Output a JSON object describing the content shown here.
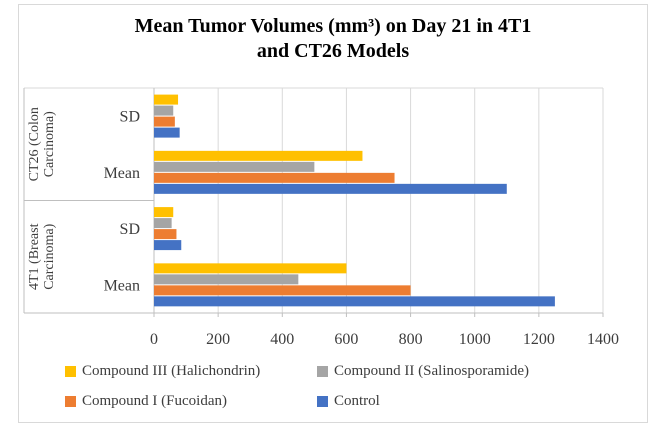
{
  "chart_data": {
    "type": "bar",
    "orientation": "horizontal",
    "title": "Mean Tumor Volumes (mm³) on Day 21 in 4T1 and CT26 Models",
    "title_lines": [
      "Mean Tumor Volumes (mm³) on Day 21 in 4T1",
      "and CT26 Models"
    ],
    "x_axis": {
      "min": 0,
      "max": 1400,
      "step": 200,
      "tick_labels": [
        "0",
        "200",
        "400",
        "600",
        "800",
        "1000",
        "1200",
        "1400"
      ]
    },
    "series": [
      {
        "name": "Compound III (Halichondrin)",
        "color": "#FFC000"
      },
      {
        "name": "Compound II (Salinosporamide)",
        "color": "#A5A5A5"
      },
      {
        "name": "Compound I (Fucoidan)",
        "color": "#ED7D31"
      },
      {
        "name": "Control",
        "color": "#4472C4"
      }
    ],
    "groups": [
      {
        "label": "CT26 (Colon Carcinoma)",
        "label_lines": [
          "CT26 (Colon",
          "Carcinoma)"
        ],
        "rows": [
          {
            "label": "SD",
            "values": [
              75,
              60,
              65,
              80
            ]
          },
          {
            "label": "Mean",
            "values": [
              650,
              500,
              750,
              1100
            ]
          }
        ]
      },
      {
        "label": "4T1 (Breast Carcinoma)",
        "label_lines": [
          "4T1 (Breast",
          "Carcinoma)"
        ],
        "rows": [
          {
            "label": "SD",
            "values": [
              60,
              55,
              70,
              85
            ]
          },
          {
            "label": "Mean",
            "values": [
              600,
              450,
              800,
              1250
            ]
          }
        ]
      }
    ],
    "legend": {
      "position": "bottom",
      "columns": 2,
      "order": [
        "Compound III (Halichondrin)",
        "Compound II (Salinosporamide)",
        "Compound I (Fucoidan)",
        "Control"
      ]
    },
    "grid": {
      "show": true,
      "color": "#D9D9D9"
    },
    "axis_line_color": "#BFBFBF",
    "text_color": "#3D3D3D",
    "title_color": "#000000"
  }
}
